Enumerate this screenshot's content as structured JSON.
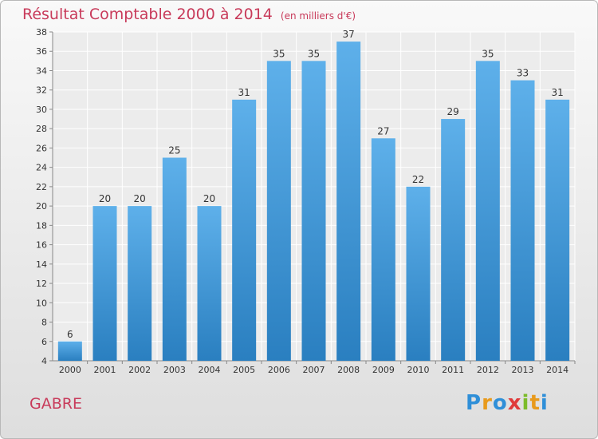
{
  "header": {
    "title": "Résultat Comptable 2000 à 2014",
    "subtitle": "(en milliers d'€)"
  },
  "footer": {
    "commune": "GABRE"
  },
  "logo": {
    "letters": [
      "P",
      "r",
      "o",
      "x",
      "i",
      "t",
      "i"
    ],
    "colors": [
      "#2f8fd8",
      "#e89a1c",
      "#2f8fd8",
      "#e03a3a",
      "#7cbc2a",
      "#e89a1c",
      "#2f8fd8"
    ]
  },
  "colors": {
    "title": "#c83a5a",
    "bar_top": "#5eb0ea",
    "bar_bottom": "#2a7fc0"
  },
  "chart_data": {
    "type": "bar",
    "title": "Résultat Comptable 2000 à 2014",
    "subtitle": "(en milliers d'€)",
    "xlabel": "",
    "ylabel": "",
    "categories": [
      "2000",
      "2001",
      "2002",
      "2003",
      "2004",
      "2005",
      "2006",
      "2007",
      "2008",
      "2009",
      "2010",
      "2011",
      "2012",
      "2013",
      "2014"
    ],
    "values": [
      6,
      20,
      20,
      25,
      20,
      31,
      35,
      35,
      37,
      27,
      22,
      29,
      35,
      33,
      31
    ],
    "ylim": [
      4,
      38
    ],
    "yticks": [
      4,
      6,
      8,
      10,
      12,
      14,
      16,
      18,
      20,
      22,
      24,
      26,
      28,
      30,
      32,
      34,
      36,
      38
    ],
    "grid": true,
    "data_labels": true,
    "legend": "none"
  }
}
